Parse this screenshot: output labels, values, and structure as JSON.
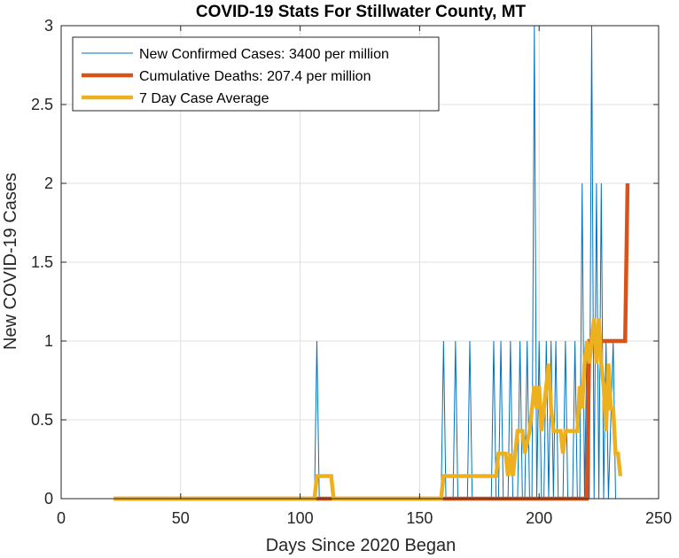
{
  "chart_data": {
    "type": "line",
    "title": "COVID-19 Stats For Stillwater County, MT",
    "xlabel": "Days Since 2020 Began",
    "ylabel": "New COVID-19 Cases",
    "xlim": [
      0,
      250
    ],
    "ylim": [
      0,
      3
    ],
    "xticks": [
      0,
      50,
      100,
      150,
      200,
      250
    ],
    "yticks": [
      0,
      0.5,
      1,
      1.5,
      2,
      2.5,
      3
    ],
    "xtick_labels": [
      "0",
      "50",
      "100",
      "150",
      "200",
      "250"
    ],
    "ytick_labels": [
      "0",
      "0.5",
      "1",
      "1.5",
      "2",
      "2.5",
      "3"
    ],
    "grid": true,
    "legend_position": "top-left",
    "series": [
      {
        "name": "New Confirmed Cases: 3400 per million",
        "color": "#0072BD",
        "style": "thin",
        "points": [
          [
            22,
            0
          ],
          [
            106,
            0
          ],
          [
            107,
            1
          ],
          [
            108,
            0
          ],
          [
            159,
            0
          ],
          [
            160,
            1
          ],
          [
            161,
            0
          ],
          [
            164,
            0
          ],
          [
            165,
            1
          ],
          [
            166,
            0
          ],
          [
            170,
            0
          ],
          [
            171,
            1
          ],
          [
            172,
            0
          ],
          [
            180,
            0
          ],
          [
            181,
            1
          ],
          [
            182,
            0
          ],
          [
            183,
            0
          ],
          [
            184,
            1
          ],
          [
            185,
            0
          ],
          [
            187,
            0
          ],
          [
            188,
            1
          ],
          [
            189,
            0
          ],
          [
            191,
            0
          ],
          [
            192,
            1
          ],
          [
            193,
            0
          ],
          [
            194,
            0
          ],
          [
            195,
            1
          ],
          [
            196,
            0
          ],
          [
            197,
            0
          ],
          [
            198,
            3
          ],
          [
            199,
            0
          ],
          [
            200,
            1
          ],
          [
            201,
            0
          ],
          [
            202,
            0
          ],
          [
            203,
            1
          ],
          [
            204,
            0
          ],
          [
            205,
            1
          ],
          [
            206,
            0
          ],
          [
            207,
            1
          ],
          [
            208,
            0
          ],
          [
            210,
            0
          ],
          [
            211,
            1
          ],
          [
            212,
            0
          ],
          [
            214,
            0
          ],
          [
            215,
            1
          ],
          [
            216,
            0
          ],
          [
            217,
            0
          ],
          [
            218,
            2
          ],
          [
            219,
            0
          ],
          [
            220,
            1
          ],
          [
            221,
            0
          ],
          [
            222,
            3
          ],
          [
            223,
            0
          ],
          [
            224,
            2
          ],
          [
            225,
            0
          ],
          [
            226,
            2
          ],
          [
            227,
            0
          ],
          [
            228,
            1
          ],
          [
            229,
            0
          ],
          [
            231,
            1
          ],
          [
            232,
            0
          ],
          [
            238,
            0
          ]
        ]
      },
      {
        "name": "Cumulative Deaths: 207.4 per million",
        "color": "#D95319",
        "style": "thick",
        "points": [
          [
            22,
            0
          ],
          [
            220,
            0
          ],
          [
            221,
            1
          ],
          [
            236,
            1
          ],
          [
            237,
            2
          ]
        ]
      },
      {
        "name": "7 Day Case Average",
        "color": "#EDB120",
        "style": "thick",
        "points": [
          [
            22,
            0
          ],
          [
            106,
            0
          ],
          [
            107,
            0.143
          ],
          [
            113,
            0.143
          ],
          [
            114,
            0
          ],
          [
            159,
            0
          ],
          [
            160,
            0.143
          ],
          [
            182,
            0.143
          ],
          [
            183,
            0.286
          ],
          [
            186,
            0.286
          ],
          [
            187,
            0.143
          ],
          [
            188,
            0.286
          ],
          [
            189,
            0.143
          ],
          [
            190,
            0.286
          ],
          [
            191,
            0.429
          ],
          [
            193,
            0.429
          ],
          [
            194,
            0.286
          ],
          [
            196,
            0.429
          ],
          [
            197,
            0.571
          ],
          [
            198,
            0.714
          ],
          [
            199,
            0.571
          ],
          [
            200,
            0.714
          ],
          [
            201,
            0.429
          ],
          [
            202,
            0.571
          ],
          [
            203,
            0.714
          ],
          [
            204,
            0.857
          ],
          [
            205,
            0.571
          ],
          [
            206,
            0.429
          ],
          [
            209,
            0.429
          ],
          [
            210,
            0.286
          ],
          [
            211,
            0.429
          ],
          [
            216,
            0.429
          ],
          [
            217,
            0.714
          ],
          [
            218,
            0.571
          ],
          [
            219,
            0.857
          ],
          [
            220,
            1.0
          ],
          [
            221,
            0.857
          ],
          [
            222,
            1.0
          ],
          [
            223,
            1.143
          ],
          [
            224,
            0.857
          ],
          [
            225,
            1.143
          ],
          [
            226,
            0.857
          ],
          [
            227,
            0.714
          ],
          [
            228,
            0.429
          ],
          [
            229,
            0.857
          ],
          [
            230,
            0.571
          ],
          [
            231,
            0.571
          ],
          [
            232,
            0.286
          ],
          [
            233,
            0.286
          ],
          [
            234,
            0.143
          ]
        ]
      }
    ]
  }
}
